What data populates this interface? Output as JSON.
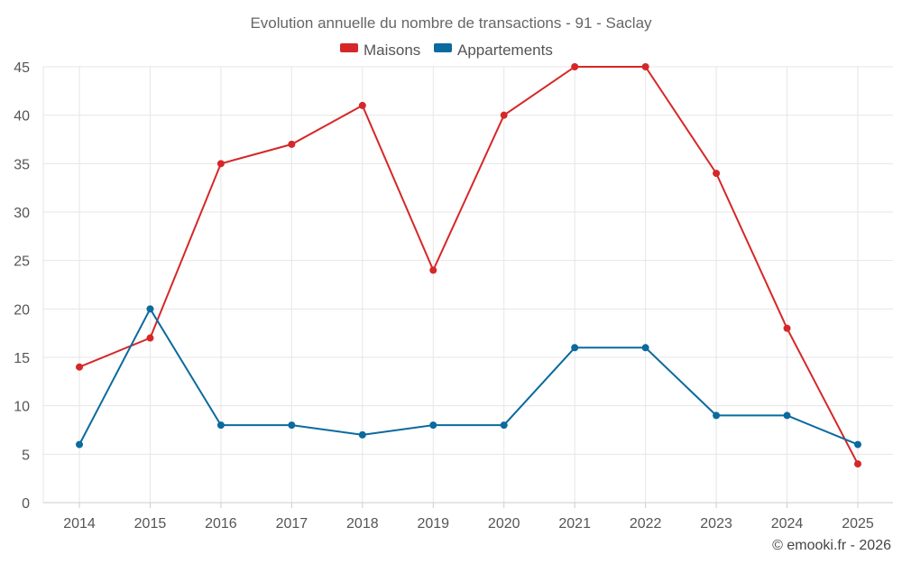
{
  "chart_data": {
    "type": "line",
    "title": "Evolution annuelle du nombre de transactions - 91 - Saclay",
    "categories": [
      "2014",
      "2015",
      "2016",
      "2017",
      "2018",
      "2019",
      "2020",
      "2021",
      "2022",
      "2023",
      "2024",
      "2025"
    ],
    "series": [
      {
        "name": "Maisons",
        "color": "#d62728",
        "values": [
          14,
          17,
          35,
          37,
          41,
          24,
          40,
          45,
          45,
          34,
          18,
          4
        ]
      },
      {
        "name": "Appartements",
        "color": "#0b6a9e",
        "values": [
          6,
          20,
          8,
          8,
          7,
          8,
          8,
          16,
          16,
          9,
          9,
          6
        ]
      }
    ],
    "ylim": [
      0,
      45
    ],
    "yticks": [
      0,
      5,
      10,
      15,
      20,
      25,
      30,
      35,
      40,
      45
    ],
    "xlabel": "",
    "ylabel": "",
    "legend_position": "top-center",
    "grid": true
  },
  "credit": "© emooki.fr - 2026"
}
